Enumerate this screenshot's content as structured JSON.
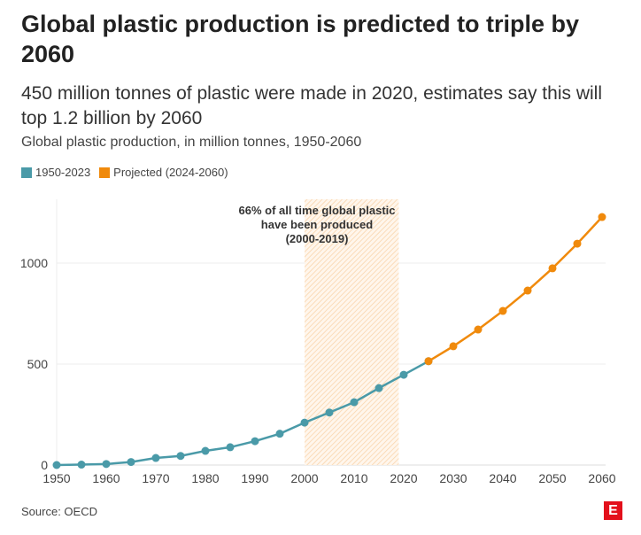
{
  "title": "Global plastic production is predicted to triple by 2060",
  "subtitle": "450 million tonnes of plastic were made in 2020, estimates say this will top 1.2 billion by 2060",
  "description": "Global plastic production, in million tonnes, 1950-2060",
  "source": "Source: OECD",
  "logo": "E",
  "chart_data": {
    "type": "line",
    "ylim": [
      0,
      1250
    ],
    "xlim": [
      1950,
      2060
    ],
    "yticks": [
      "0",
      "500",
      "1000"
    ],
    "xticks": [
      "1950",
      "1960",
      "1970",
      "1980",
      "1990",
      "2000",
      "2010",
      "2020",
      "2030",
      "2040",
      "2050",
      "2060"
    ],
    "grid": true,
    "legend_position": "top-left",
    "series": [
      {
        "name": "1950-2023",
        "color": "#4a9aa8",
        "x": [
          1950,
          1955,
          1960,
          1965,
          1970,
          1975,
          1980,
          1985,
          1990,
          1995,
          2000,
          2005,
          2010,
          2015,
          2020,
          2025
        ],
        "y": [
          0,
          2,
          5,
          15,
          35,
          45,
          70,
          88,
          118,
          155,
          210,
          260,
          311,
          381,
          447,
          514
        ]
      },
      {
        "name": "Projected (2024-2060)",
        "color": "#f08a0c",
        "x": [
          2025,
          2030,
          2035,
          2040,
          2045,
          2050,
          2055,
          2060
        ],
        "y": [
          514,
          588,
          671,
          763,
          864,
          974,
          1096,
          1228
        ]
      }
    ],
    "annotation": {
      "range": [
        2000,
        2019
      ],
      "lines": [
        "66% of all time global plastic",
        "have been produced",
        "(2000-2019)"
      ],
      "color": "#fbd9b4"
    }
  }
}
